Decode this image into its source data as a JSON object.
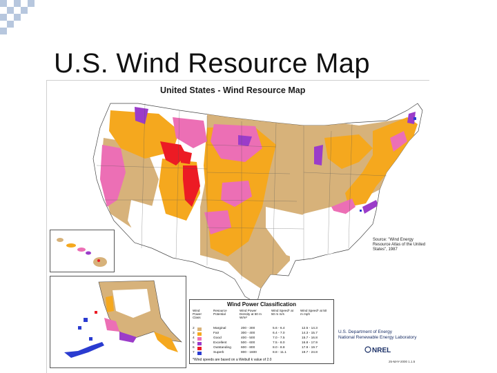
{
  "slide": {
    "title": "U.S. Wind Resource Map"
  },
  "map": {
    "heading": "United States - Wind Resource Map",
    "source_note": "Source: \"Wind Energy Resource Atlas of the United States\", 1987",
    "insets": [
      "Hawaii",
      "Alaska"
    ],
    "colors": {
      "class2": "#d7b27a",
      "class3": "#f5a81e",
      "class4": "#ec6fb5",
      "class5": "#9b3cc9",
      "class6": "#ec1b24",
      "class7": "#2a3bd0",
      "water": "#ffffff"
    },
    "legend": {
      "title": "Wind Power Classification",
      "headers": {
        "class": "Wind Power Class",
        "potential": "Resource Potential",
        "density": "Wind Power Density at 50 m W/m²",
        "speed_ms": "Wind Speed* at 50 m m/s",
        "speed_mph": "Wind Speed* at 50 m mph"
      },
      "rows": [
        {
          "cls": "2",
          "potential": "Marginal",
          "density": "200 - 300",
          "ms": "5.6 - 6.4",
          "mph": "12.5 - 14.3",
          "color": "#d7b27a"
        },
        {
          "cls": "3",
          "potential": "Fair",
          "density": "300 - 400",
          "ms": "6.4 - 7.0",
          "mph": "14.3 - 15.7",
          "color": "#f5a81e"
        },
        {
          "cls": "4",
          "potential": "Good",
          "density": "400 - 500",
          "ms": "7.0 - 7.5",
          "mph": "15.7 - 16.8",
          "color": "#ec6fb5"
        },
        {
          "cls": "5",
          "potential": "Excellent",
          "density": "500 - 600",
          "ms": "7.5 - 8.0",
          "mph": "16.8 - 17.9",
          "color": "#9b3cc9"
        },
        {
          "cls": "6",
          "potential": "Outstanding",
          "density": "600 - 800",
          "ms": "8.0 - 8.8",
          "mph": "17.9 - 19.7",
          "color": "#ec1b24"
        },
        {
          "cls": "7",
          "potential": "Superb",
          "density": "800 - 1600",
          "ms": "8.8 - 11.1",
          "mph": "19.7 - 24.8",
          "color": "#2a3bd0"
        }
      ],
      "footnote": "*Wind speeds are based on a Weibull k value of 2.0"
    },
    "agency": {
      "line1": "U.S. Department of Energy",
      "line2": "National Renewable Energy Laboratory"
    },
    "logo_text": "NREL",
    "stamp": "25-MAY-2000 1.1.5"
  }
}
